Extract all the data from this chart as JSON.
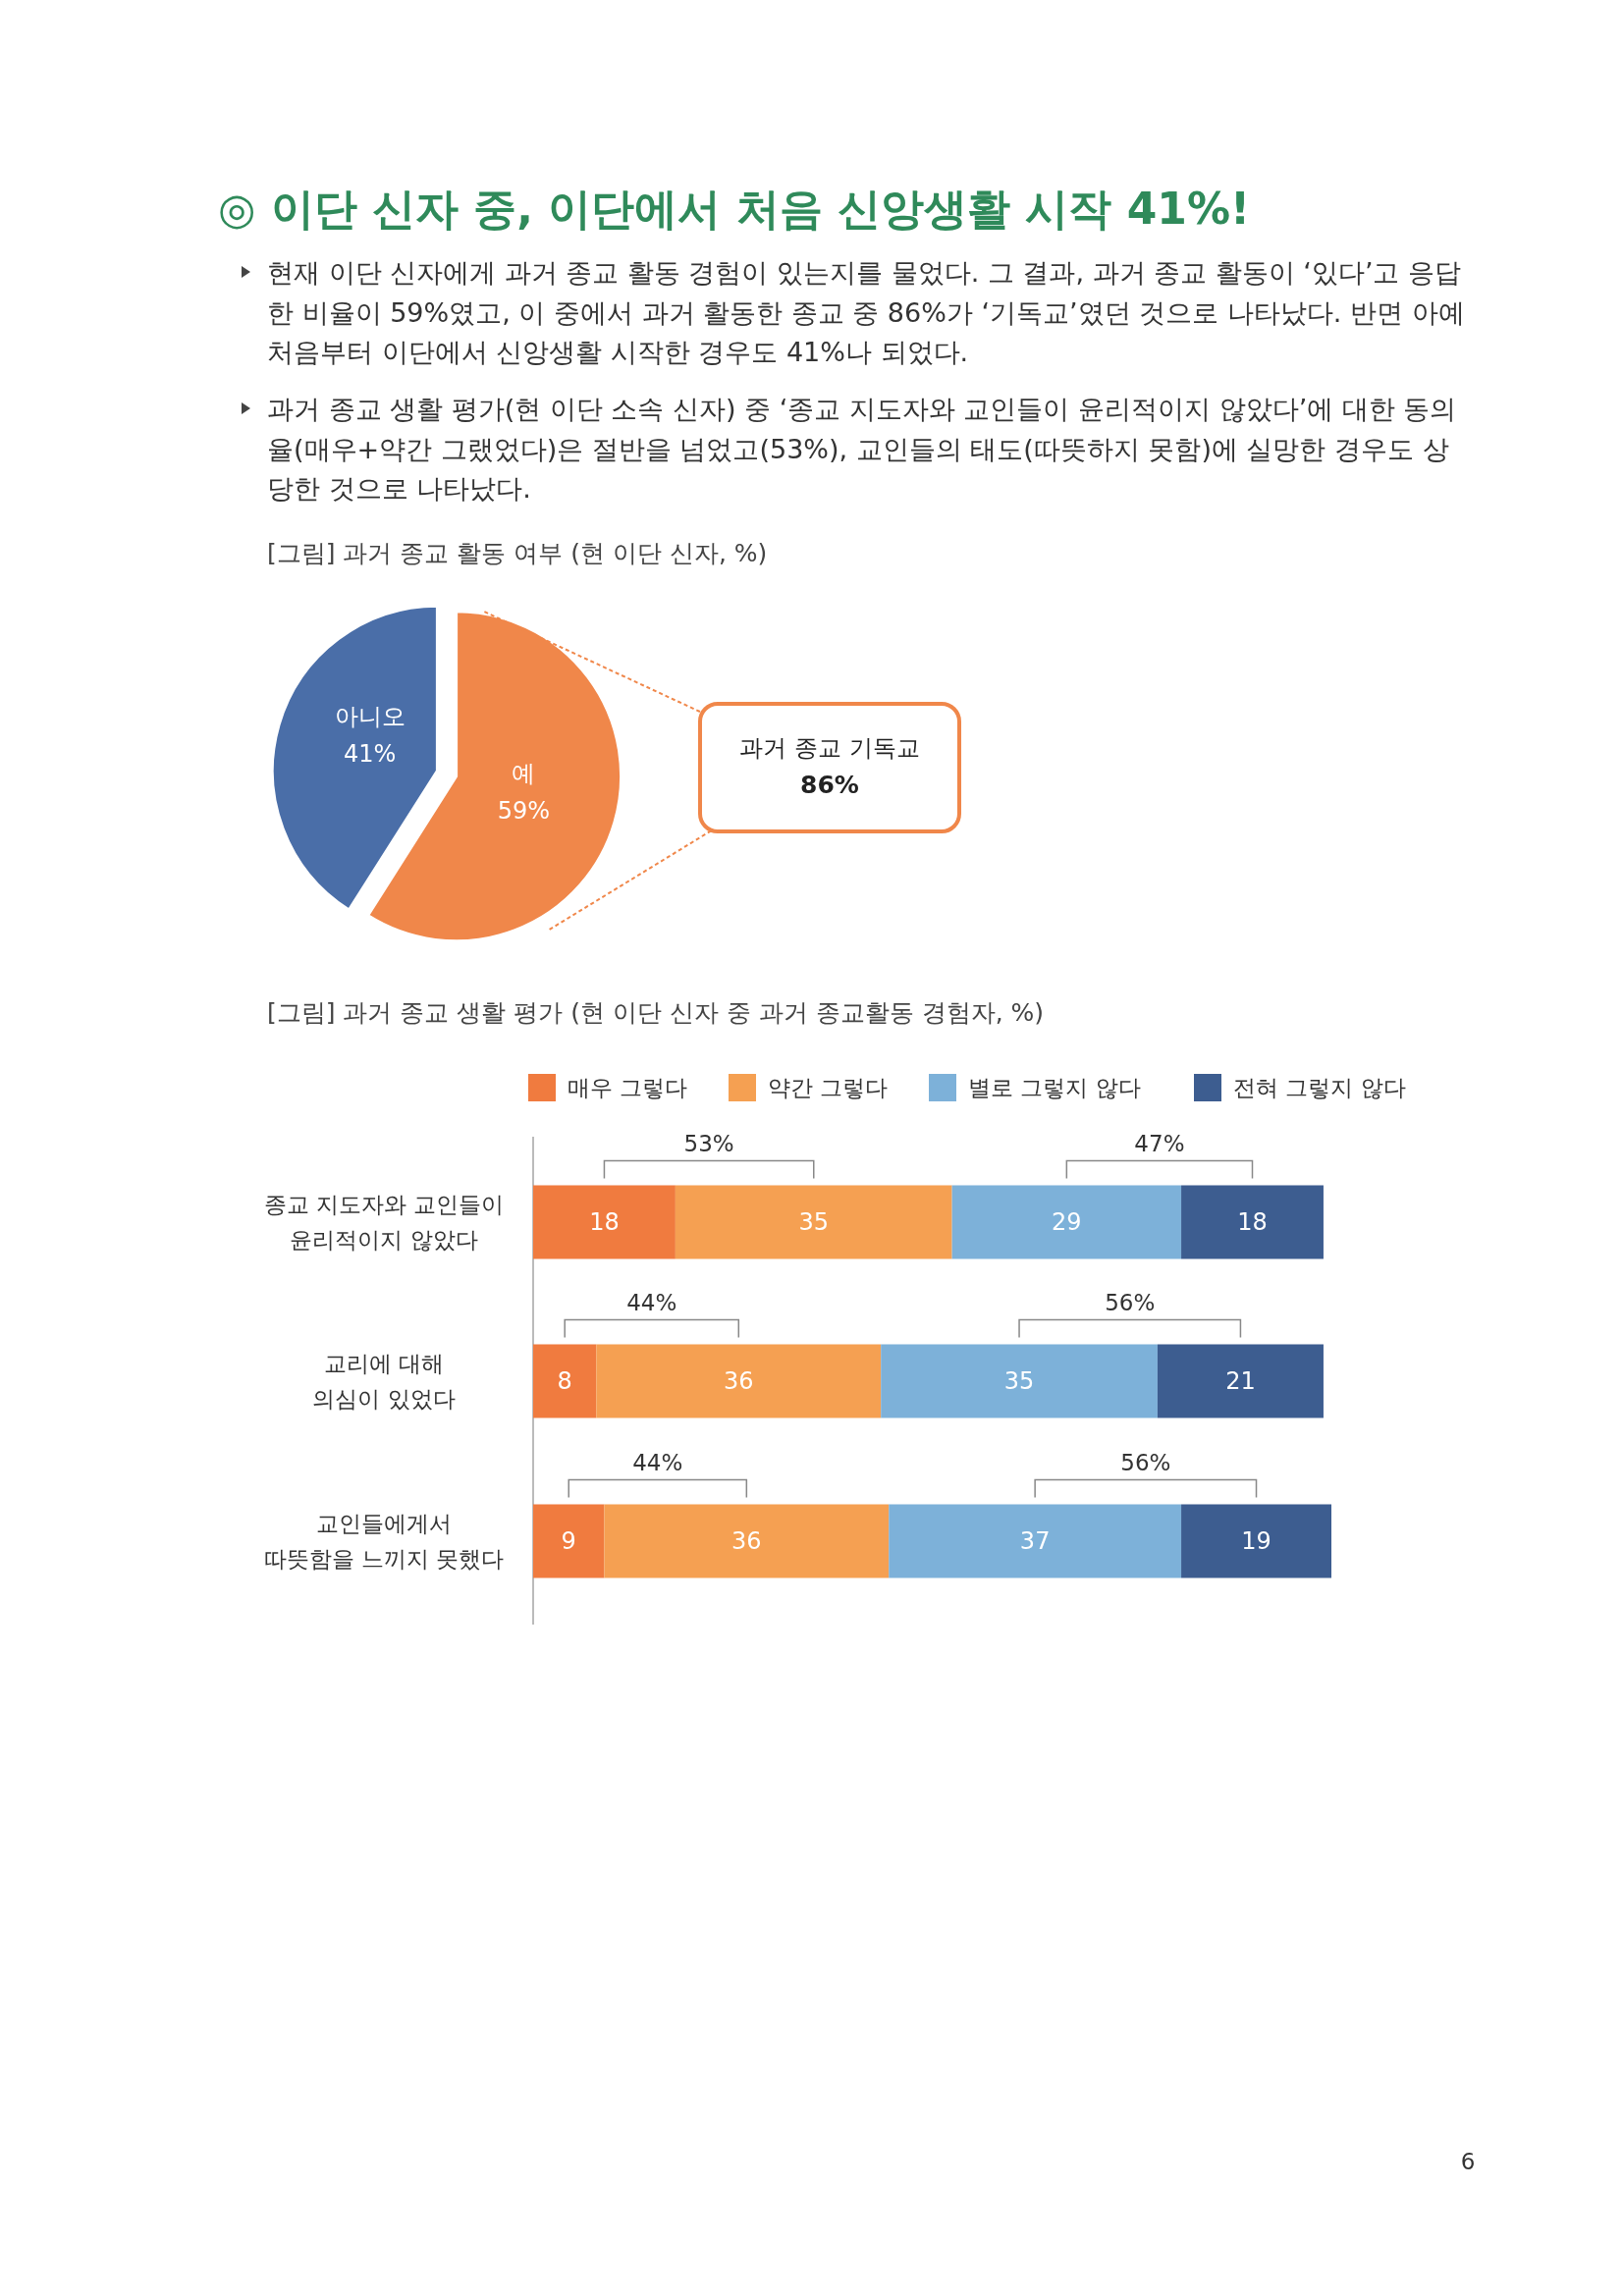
{
  "chart_data": [
    {
      "type": "pie",
      "title": "◎ 이단 신자 중, 이단에서 처음 신앙생활 시작 41%!",
      "subtitle": "[그림] 과거 종교 활동 여부 (현 이단 신자, %)",
      "annotations": [
        "현재 이단 신자에게 과거 종교 활동 경험이 있는지를 물었다. 그 결과, 과거 종교 활동이 ‘있다’고 응답한 비율이 59%였고, 이 중에서 과거 활동한 종교 중 86%가 ‘기독교’였던 것으로 나타났다. 반면 아예 처음부터 이단에서 신앙생활 시작한 경우도 41%나 되었다.",
        "과거 종교 생활 평가(현 이단 소속 신자) 중 ‘종교 지도자와 교인들이 윤리적이지 않았다’에 대한 동의율(매우+약간 그랬었다)은 절반을 넘었고(53%), 교인들의 태도(따뜻하지 못함)에 실망한 경우도 상당한 것으로 나타났다.",
        "과거 종교 기독교",
        "86%"
      ],
      "categories": [
        "예",
        "아니오"
      ],
      "values": [
        59,
        41
      ],
      "value_labels": [
        "59%",
        "41%"
      ],
      "colors": [
        "#f0874a",
        "#4a6ea8"
      ]
    },
    {
      "type": "bar",
      "orientation": "horizontal",
      "stacked": true,
      "data_labels": true,
      "legend": "top",
      "title": "[그림] 과거 종교 생활 평가 (현 이단 신자 중 과거 종교활동 경험자, %)",
      "categories": [
        "종교 지도자와 교인들이\n윤리적이지 않았다",
        "교리에 대해\n의심이 있었다",
        "교인들에게서\n따뜻함을 느끼지 못했다"
      ],
      "series": [
        {
          "name": "매우 그렇다",
          "color": "#f07b3f",
          "values": [
            18,
            8,
            9
          ]
        },
        {
          "name": "약간 그렇다",
          "color": "#f5a052",
          "values": [
            35,
            36,
            36
          ]
        },
        {
          "name": "별로 그렇지 않다",
          "color": "#7db1d9",
          "values": [
            29,
            35,
            37
          ]
        },
        {
          "name": "전혀 그렇지 않다",
          "color": "#3d5d90",
          "values": [
            18,
            21,
            19
          ]
        }
      ],
      "annotations": [
        "53%",
        "47%",
        "44%",
        "56%",
        "44%",
        "56%",
        "6"
      ]
    }
  ]
}
